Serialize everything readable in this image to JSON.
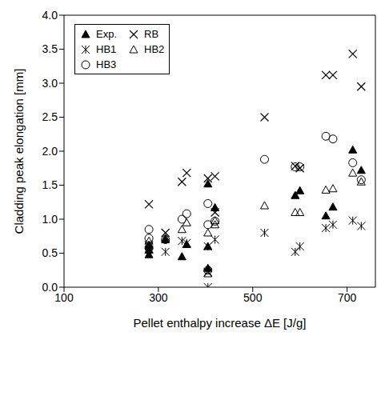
{
  "chart_data": {
    "type": "scatter",
    "x_label": "Pellet enthalpy increase ΔE [J/g]",
    "y_label": "Cladding peak elongation  [mm]",
    "xlim": [
      100,
      760
    ],
    "xticks": [
      100,
      300,
      500,
      700
    ],
    "ylim": [
      0,
      4
    ],
    "yticks": [
      {
        "value": 0,
        "label": "0.0"
      },
      0.5,
      {
        "value": 1,
        "label": "1.0"
      },
      1.5,
      {
        "value": 2,
        "label": "2.0"
      },
      2.5,
      {
        "value": 3,
        "label": "3.0"
      },
      3.5,
      {
        "value": 4,
        "label": "4.0"
      }
    ],
    "legend": "upper left",
    "grid": false,
    "series": [
      {
        "name": "Exp.",
        "color": "#000000",
        "marker": "triangle",
        "x": [
          280,
          280,
          280,
          315,
          350,
          360,
          405,
          405,
          405,
          420,
          590,
          600,
          655,
          670,
          712,
          730
        ],
        "values": [
          0.48,
          0.55,
          0.62,
          0.7,
          0.45,
          0.63,
          0.6,
          0.28,
          1.52,
          1.17,
          1.35,
          1.42,
          1.05,
          1.18,
          2.02,
          1.72
        ]
      },
      {
        "name": "RB",
        "color": "#000000",
        "marker": "x",
        "x": [
          280,
          280,
          315,
          350,
          360,
          405,
          405,
          420,
          420,
          525,
          590,
          600,
          655,
          670,
          712,
          730
        ],
        "values": [
          1.22,
          0.62,
          0.8,
          1.55,
          1.68,
          1.6,
          0.22,
          1.63,
          1.1,
          2.5,
          1.78,
          1.75,
          3.12,
          3.12,
          3.43,
          2.95
        ]
      },
      {
        "name": "HB1",
        "color": "#000000",
        "marker": "asterisk",
        "x": [
          280,
          280,
          315,
          350,
          360,
          405,
          405,
          420,
          525,
          590,
          600,
          655,
          670,
          712,
          730
        ],
        "values": [
          0.55,
          0.6,
          0.52,
          0.68,
          0.65,
          0.0,
          0.6,
          0.7,
          0.8,
          0.52,
          0.6,
          0.87,
          0.92,
          0.98,
          0.9
        ]
      },
      {
        "name": "HB2",
        "color": "#000000",
        "marker": "triangle-open",
        "x": [
          280,
          280,
          315,
          350,
          360,
          405,
          405,
          420,
          420,
          525,
          590,
          600,
          655,
          670,
          712,
          730
        ],
        "values": [
          0.68,
          0.55,
          0.72,
          0.85,
          0.95,
          0.8,
          0.2,
          0.98,
          0.92,
          1.2,
          1.1,
          1.1,
          1.43,
          1.45,
          1.68,
          1.55
        ]
      },
      {
        "name": "HB3",
        "color": "#000000",
        "marker": "circle-open",
        "x": [
          280,
          280,
          280,
          315,
          350,
          360,
          405,
          405,
          405,
          420,
          525,
          590,
          600,
          655,
          670,
          712,
          730
        ],
        "values": [
          0.85,
          0.72,
          0.58,
          0.7,
          1.0,
          1.08,
          1.23,
          0.25,
          0.92,
          0.97,
          1.88,
          1.77,
          1.77,
          2.22,
          2.18,
          1.83,
          1.58
        ]
      }
    ]
  }
}
